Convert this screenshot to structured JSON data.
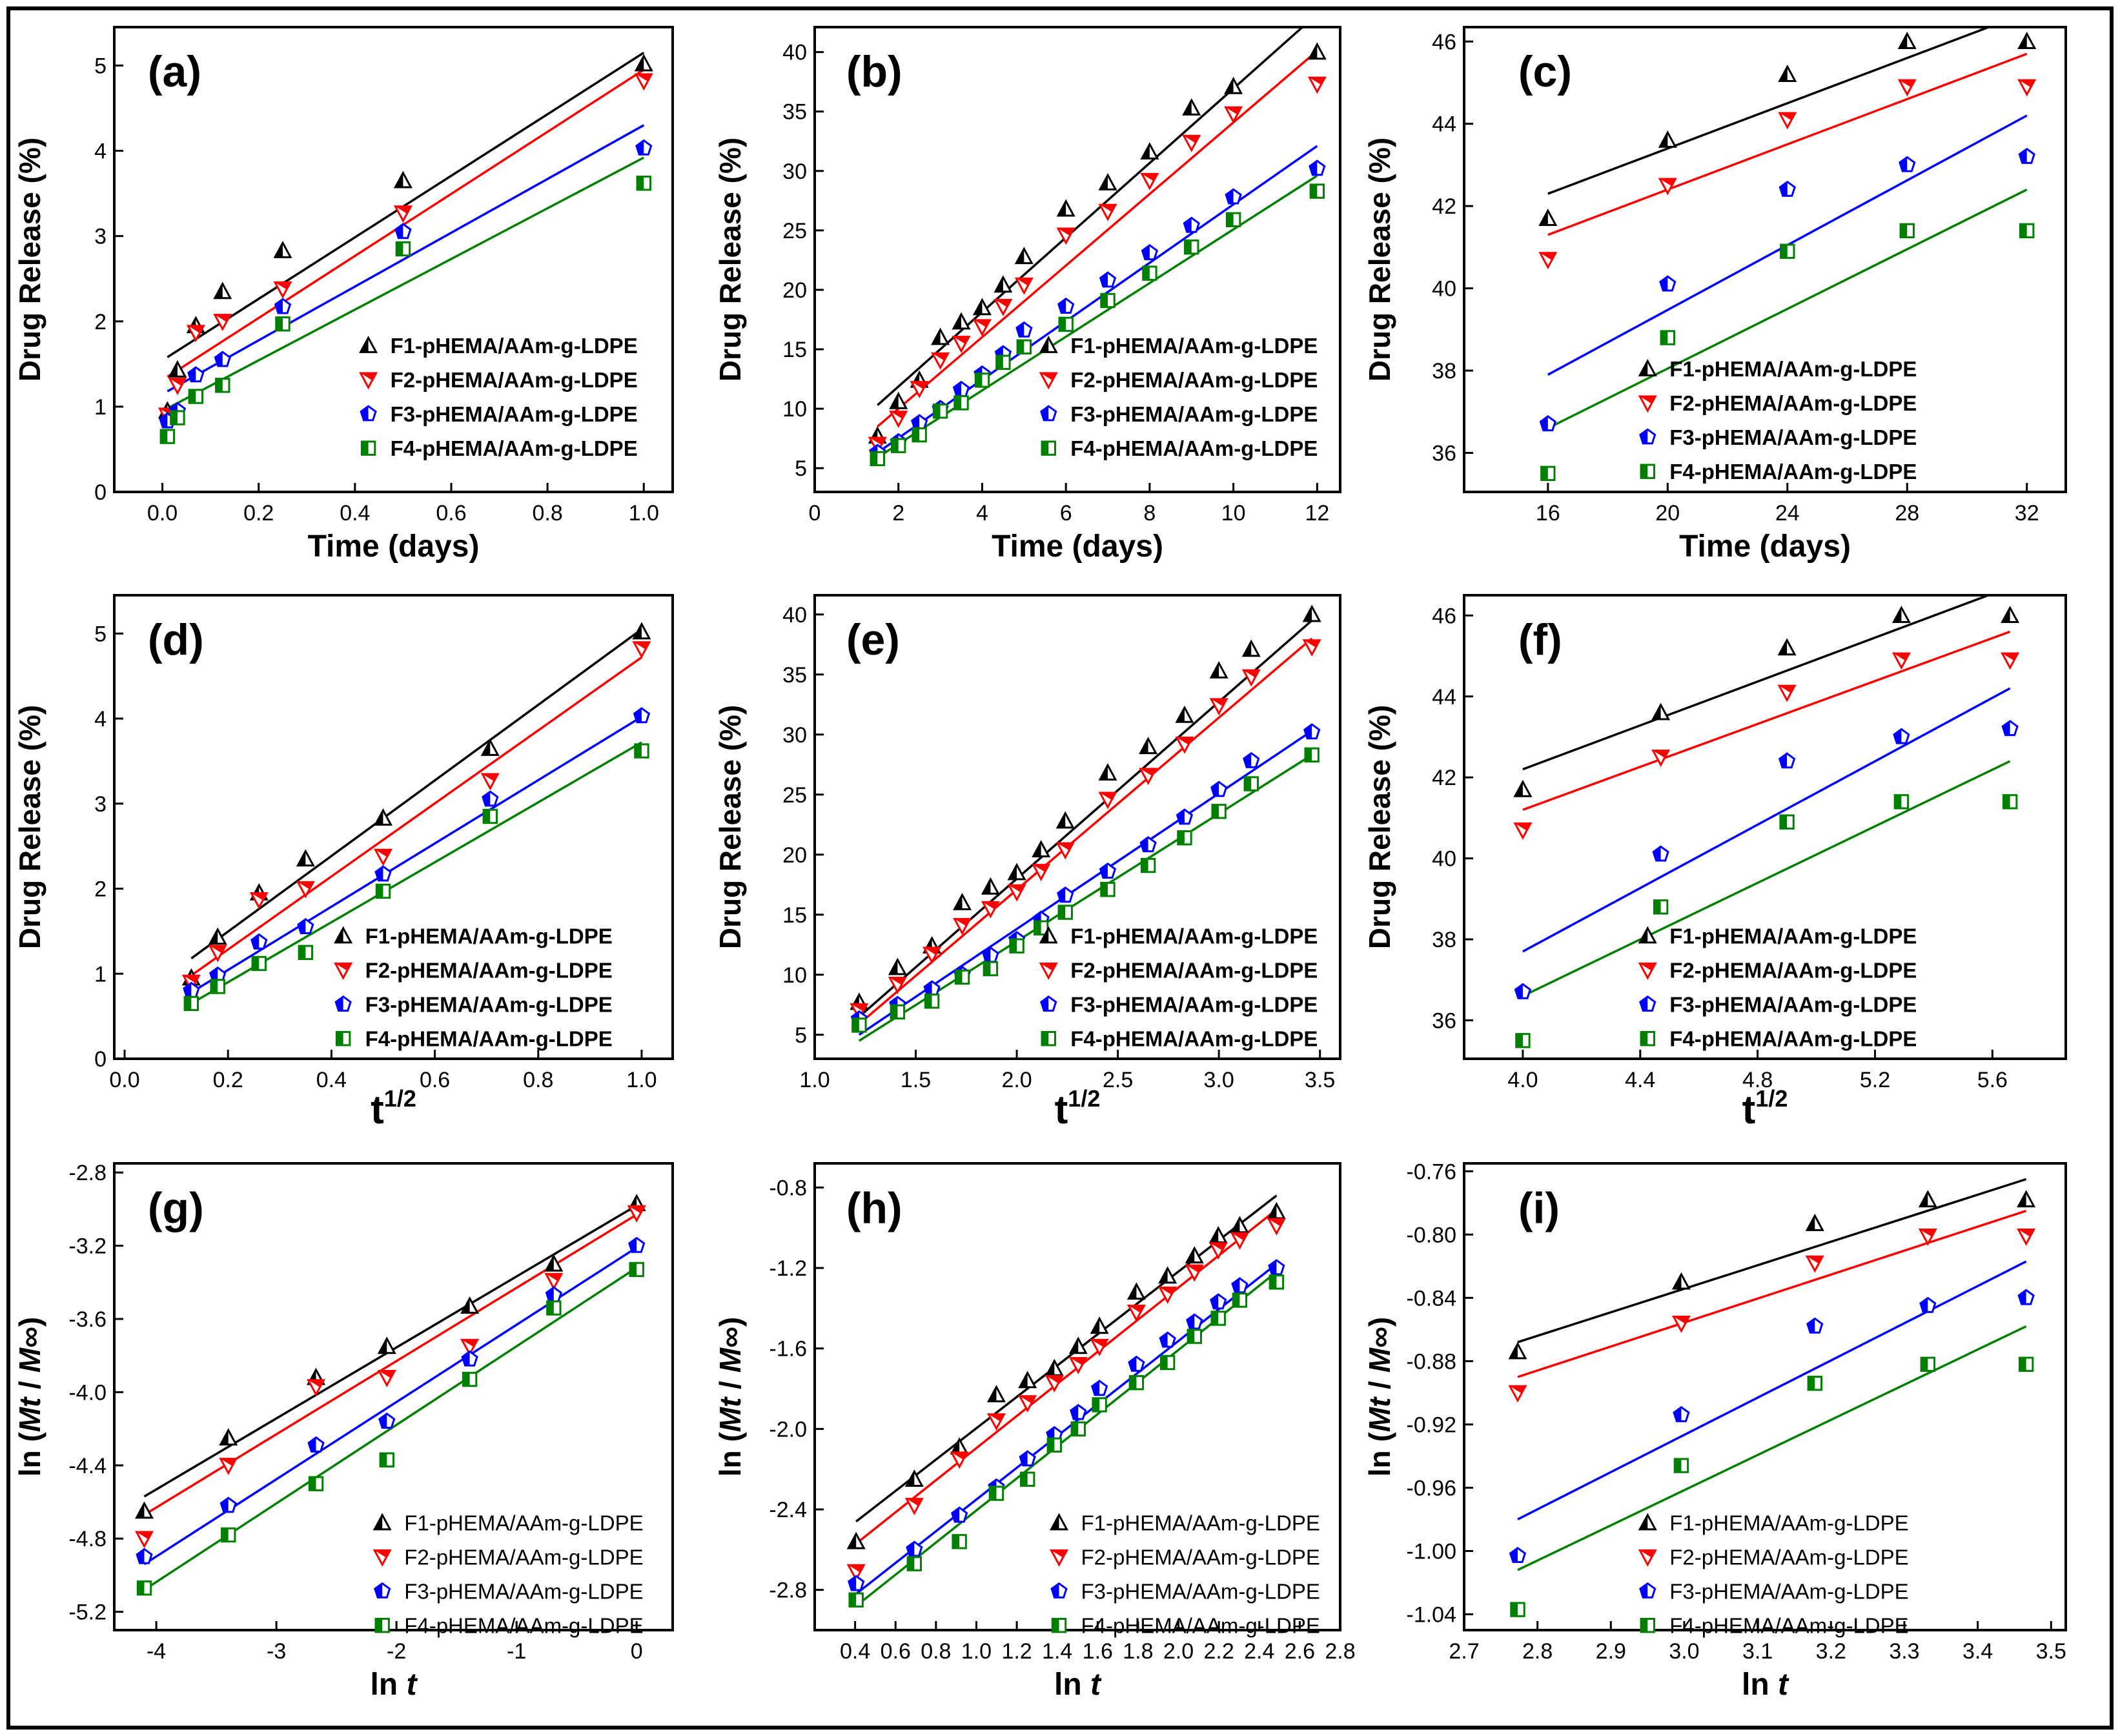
{
  "series_colors": {
    "F1": "#000000",
    "F2": "#ff0000",
    "F3": "#0000ff",
    "F4": "#008000"
  },
  "chart_data": [
    {
      "panel": "(a)",
      "type": "scatter",
      "xlabel": "Time (days)",
      "ylabel": "Drug Release (%)",
      "xlim": [
        -0.1,
        1.06
      ],
      "ylim": [
        0,
        5.45
      ],
      "xticks": [
        0.0,
        0.2,
        0.4,
        0.6,
        0.8,
        1.0
      ],
      "xticklabels": [
        "0.0",
        "0.2",
        "0.4",
        "0.6",
        "0.8",
        "1.0"
      ],
      "yticks": [
        0,
        1,
        2,
        3,
        4,
        5
      ],
      "yticklabels": [
        "0",
        "1",
        "2",
        "3",
        "4",
        "5"
      ],
      "x": [
        0.0104,
        0.0313,
        0.0694,
        0.125,
        0.25,
        0.5,
        1.0
      ],
      "series": [
        {
          "name": "F1-pHEMA/AAm-g-LDPE",
          "values": [
            0.95,
            1.43,
            1.95,
            2.35,
            2.83,
            3.65,
            5.02
          ],
          "fit": [
            1.58,
            5.15
          ]
        },
        {
          "name": "F2-pHEMA/AAm-g-LDPE",
          "values": [
            0.9,
            1.25,
            1.87,
            2.0,
            2.38,
            3.27,
            4.82
          ],
          "fit": [
            1.35,
            4.95
          ]
        },
        {
          "name": "F3-pHEMA/AAm-g-LDPE",
          "values": [
            0.83,
            0.95,
            1.37,
            1.55,
            2.17,
            3.05,
            4.03
          ],
          "fit": [
            1.18,
            4.3
          ]
        },
        {
          "name": "F4-pHEMA/AAm-g-LDPE",
          "values": [
            0.65,
            0.87,
            1.12,
            1.25,
            1.97,
            2.85,
            3.62
          ],
          "fit": [
            0.98,
            3.92
          ]
        }
      ]
    },
    {
      "panel": "(b)",
      "type": "scatter",
      "xlabel": "Time (days)",
      "ylabel": "Drug Release (%)",
      "xlim": [
        0,
        12.55
      ],
      "ylim": [
        3,
        42.1
      ],
      "xticks": [
        0,
        2,
        4,
        6,
        8,
        10,
        12
      ],
      "xticklabels": [
        "0",
        "2",
        "4",
        "6",
        "8",
        "10",
        "12"
      ],
      "yticks": [
        5,
        10,
        15,
        20,
        25,
        30,
        35,
        40
      ],
      "yticklabels": [
        "5",
        "10",
        "15",
        "20",
        "25",
        "30",
        "35",
        "40"
      ],
      "x": [
        1.5,
        2.0,
        2.5,
        3.0,
        3.5,
        4.0,
        4.5,
        5.0,
        6.0,
        7.0,
        8.0,
        9.0,
        10.0,
        12.0
      ],
      "series": [
        {
          "name": "F1-pHEMA/AAm-g-LDPE",
          "values": [
            7.7,
            10.6,
            12.4,
            16.0,
            17.3,
            18.5,
            20.4,
            22.8,
            26.8,
            29.0,
            31.6,
            35.3,
            37.1,
            40.0
          ],
          "fit": [
            10.3,
            43.2
          ]
        },
        {
          "name": "F2-pHEMA/AAm-g-LDPE",
          "values": [
            7.0,
            9.2,
            11.7,
            14.1,
            15.5,
            16.9,
            18.6,
            20.4,
            24.6,
            26.6,
            29.2,
            32.4,
            34.8,
            37.3
          ],
          "fit": [
            8.5,
            40.1
          ]
        },
        {
          "name": "F3-pHEMA/AAm-g-LDPE",
          "values": [
            6.3,
            7.2,
            8.8,
            10.0,
            11.6,
            12.9,
            14.6,
            16.6,
            18.6,
            20.8,
            23.1,
            25.4,
            27.8,
            30.2
          ],
          "fit": [
            6.3,
            32.1
          ]
        },
        {
          "name": "F4-pHEMA/AAm-g-LDPE",
          "values": [
            5.8,
            6.9,
            7.8,
            9.8,
            10.5,
            12.4,
            13.9,
            15.2,
            17.1,
            19.1,
            21.4,
            23.6,
            25.9,
            28.3
          ],
          "fit": [
            5.9,
            29.6
          ]
        }
      ]
    },
    {
      "panel": "(c)",
      "type": "scatter",
      "xlabel": "Time (days)",
      "ylabel": "Drug Release (%)",
      "xlim": [
        13.2,
        33.3
      ],
      "ylim": [
        35.05,
        46.35
      ],
      "xticks": [
        16,
        20,
        24,
        28,
        32
      ],
      "xticklabels": [
        "16",
        "20",
        "24",
        "28",
        "32"
      ],
      "yticks": [
        36,
        38,
        40,
        42,
        44,
        46
      ],
      "yticklabels": [
        "36",
        "38",
        "40",
        "42",
        "44",
        "46"
      ],
      "x": [
        16,
        20,
        24,
        28,
        32
      ],
      "series": [
        {
          "name": "F1-pHEMA/AAm-g-LDPE",
          "values": [
            41.7,
            43.6,
            45.2,
            46.0,
            46.0
          ],
          "fit": [
            42.3,
            46.7
          ]
        },
        {
          "name": "F2-pHEMA/AAm-g-LDPE",
          "values": [
            40.7,
            42.5,
            44.1,
            44.9,
            44.9
          ],
          "fit": [
            41.3,
            45.7
          ]
        },
        {
          "name": "F3-pHEMA/AAm-g-LDPE",
          "values": [
            36.7,
            40.1,
            42.4,
            43.0,
            43.2
          ],
          "fit": [
            37.9,
            44.2
          ]
        },
        {
          "name": "F4-pHEMA/AAm-g-LDPE",
          "values": [
            35.5,
            38.8,
            40.9,
            41.4,
            41.4
          ],
          "fit": [
            36.6,
            42.4
          ]
        }
      ]
    },
    {
      "panel": "(d)",
      "type": "scatter",
      "xlabel": "t",
      "xlabel_sup": "1/2",
      "ylabel": "Drug Release (%)",
      "xlim": [
        -0.02,
        1.06
      ],
      "ylim": [
        0,
        5.45
      ],
      "xticks": [
        0.0,
        0.2,
        0.4,
        0.6,
        0.8,
        1.0
      ],
      "xticklabels": [
        "0.0",
        "0.2",
        "0.4",
        "0.6",
        "0.8",
        "1.0"
      ],
      "yticks": [
        0,
        1,
        2,
        3,
        4,
        5
      ],
      "yticklabels": [
        "0",
        "1",
        "2",
        "3",
        "4",
        "5"
      ],
      "x": [
        0.129,
        0.18,
        0.26,
        0.35,
        0.5,
        0.707,
        1.0
      ],
      "series": [
        {
          "name": "F1-pHEMA/AAm-g-LDPE",
          "values": [
            0.95,
            1.43,
            1.95,
            2.35,
            2.83,
            3.65,
            5.02
          ],
          "fit": [
            1.18,
            5.05
          ]
        },
        {
          "name": "F2-pHEMA/AAm-g-LDPE",
          "values": [
            0.9,
            1.25,
            1.87,
            2.0,
            2.38,
            3.27,
            4.82
          ],
          "fit": [
            0.98,
            4.72
          ]
        },
        {
          "name": "F3-pHEMA/AAm-g-LDPE",
          "values": [
            0.8,
            0.98,
            1.37,
            1.55,
            2.17,
            3.05,
            4.03
          ],
          "fit": [
            0.78,
            4.02
          ]
        },
        {
          "name": "F4-pHEMA/AAm-g-LDPE",
          "values": [
            0.65,
            0.85,
            1.12,
            1.25,
            1.97,
            2.85,
            3.62
          ],
          "fit": [
            0.65,
            3.72
          ]
        }
      ]
    },
    {
      "panel": "(e)",
      "type": "scatter",
      "xlabel": "t",
      "xlabel_sup": "1/2",
      "ylabel": "Drug Release (%)",
      "xlim": [
        1.0,
        3.6
      ],
      "ylim": [
        3,
        41.6
      ],
      "xticks": [
        1.0,
        1.5,
        2.0,
        2.5,
        3.0,
        3.5
      ],
      "xticklabels": [
        "1.0",
        "1.5",
        "2.0",
        "2.5",
        "3.0",
        "3.5"
      ],
      "yticks": [
        5,
        10,
        15,
        20,
        25,
        30,
        35,
        40
      ],
      "yticklabels": [
        "5",
        "10",
        "15",
        "20",
        "25",
        "30",
        "35",
        "40"
      ],
      "x": [
        1.22,
        1.41,
        1.58,
        1.73,
        1.87,
        2.0,
        2.12,
        2.24,
        2.45,
        2.65,
        2.83,
        3.0,
        3.16,
        3.46
      ],
      "series": [
        {
          "name": "F1-pHEMA/AAm-g-LDPE",
          "values": [
            7.7,
            10.6,
            12.4,
            16.0,
            17.3,
            18.5,
            20.4,
            22.8,
            26.8,
            29.0,
            31.6,
            35.3,
            37.1,
            40.0
          ],
          "fit": [
            6.5,
            39.5
          ]
        },
        {
          "name": "F2-pHEMA/AAm-g-LDPE",
          "values": [
            7.0,
            9.2,
            11.7,
            14.1,
            15.5,
            16.9,
            18.6,
            20.4,
            24.6,
            26.6,
            29.2,
            32.4,
            34.8,
            37.3
          ],
          "fit": [
            5.9,
            38.0
          ]
        },
        {
          "name": "F3-pHEMA/AAm-g-LDPE",
          "values": [
            6.3,
            7.5,
            8.8,
            10.0,
            11.6,
            12.9,
            14.6,
            16.6,
            18.6,
            20.8,
            23.1,
            25.4,
            27.8,
            30.2
          ],
          "fit": [
            5.0,
            30.3
          ]
        },
        {
          "name": "F4-pHEMA/AAm-g-LDPE",
          "values": [
            5.8,
            6.9,
            7.8,
            9.8,
            10.5,
            12.4,
            13.9,
            15.2,
            17.1,
            19.1,
            21.4,
            23.6,
            25.9,
            28.3
          ],
          "fit": [
            4.5,
            28.3
          ]
        }
      ]
    },
    {
      "panel": "(f)",
      "type": "scatter",
      "xlabel": "t",
      "xlabel_sup": "1/2",
      "ylabel": "Drug Release (%)",
      "xlim": [
        3.8,
        5.85
      ],
      "ylim": [
        35.05,
        46.5
      ],
      "xticks": [
        4.0,
        4.4,
        4.8,
        5.2,
        5.6
      ],
      "xticklabels": [
        "4.0",
        "4.4",
        "4.8",
        "5.2",
        "5.6"
      ],
      "yticks": [
        36,
        38,
        40,
        42,
        44,
        46
      ],
      "yticklabels": [
        "36",
        "38",
        "40",
        "42",
        "44",
        "46"
      ],
      "x": [
        4.0,
        4.47,
        4.9,
        5.29,
        5.66
      ],
      "series": [
        {
          "name": "F1-pHEMA/AAm-g-LDPE",
          "values": [
            41.7,
            43.6,
            45.2,
            46.0,
            46.0
          ],
          "fit": [
            42.2,
            46.7
          ]
        },
        {
          "name": "F2-pHEMA/AAm-g-LDPE",
          "values": [
            40.7,
            42.5,
            44.1,
            44.9,
            44.9
          ],
          "fit": [
            41.2,
            45.6
          ]
        },
        {
          "name": "F3-pHEMA/AAm-g-LDPE",
          "values": [
            36.7,
            40.1,
            42.4,
            43.0,
            43.2
          ],
          "fit": [
            37.7,
            44.2
          ]
        },
        {
          "name": "F4-pHEMA/AAm-g-LDPE",
          "values": [
            35.5,
            38.8,
            40.9,
            41.4,
            41.4
          ],
          "fit": [
            36.6,
            42.4
          ]
        }
      ]
    },
    {
      "panel": "(g)",
      "type": "scatter",
      "xlabel": "ln t",
      "ylabel": "ln (Mt / M∞)",
      "xlim": [
        -4.35,
        0.3
      ],
      "ylim": [
        -5.3,
        -2.75
      ],
      "xticks": [
        -4,
        -3,
        -2,
        -1,
        0
      ],
      "xticklabels": [
        "-4",
        "-3",
        "-2",
        "-1",
        "0"
      ],
      "yticks": [
        -2.8,
        -3.2,
        -3.6,
        -4.0,
        -4.4,
        -4.8,
        -5.2
      ],
      "yticklabels": [
        "-2.8",
        "-3.2",
        "-3.6",
        "-4.0",
        "-4.4",
        "-4.8",
        "-5.2"
      ],
      "x": [
        -4.1,
        -3.4,
        -2.67,
        -2.08,
        -1.39,
        -0.69,
        0.0
      ],
      "series": [
        {
          "name": "F1-pHEMA/AAm-g-LDPE",
          "values": [
            -4.65,
            -4.25,
            -3.92,
            -3.75,
            -3.53,
            -3.3,
            -2.97
          ],
          "fit": [
            -4.57,
            -2.98
          ]
        },
        {
          "name": "F2-pHEMA/AAm-g-LDPE",
          "values": [
            -4.8,
            -4.4,
            -3.97,
            -3.92,
            -3.75,
            -3.39,
            -3.02
          ],
          "fit": [
            -4.67,
            -3.03
          ]
        },
        {
          "name": "F3-pHEMA/AAm-g-LDPE",
          "values": [
            -4.9,
            -4.62,
            -4.29,
            -4.16,
            -3.82,
            -3.47,
            -3.2
          ],
          "fit": [
            -4.94,
            -3.21
          ]
        },
        {
          "name": "F4-pHEMA/AAm-g-LDPE",
          "values": [
            -5.07,
            -4.78,
            -4.5,
            -4.37,
            -3.93,
            -3.54,
            -3.33
          ],
          "fit": [
            -5.08,
            -3.32
          ]
        }
      ]
    },
    {
      "panel": "(h)",
      "type": "scatter",
      "xlabel": "ln t",
      "ylabel": "ln (Mt / M∞)",
      "xlim": [
        0.2,
        2.8
      ],
      "ylim": [
        -3.0,
        -0.68
      ],
      "xticks": [
        0.4,
        0.6,
        0.8,
        1.0,
        1.2,
        1.4,
        1.6,
        1.8,
        2.0,
        2.2,
        2.4,
        2.6,
        2.8
      ],
      "xticklabels": [
        "0.4",
        "0.6",
        "0.8",
        "1.0",
        "1.2",
        "1.4",
        "1.6",
        "1.8",
        "2.0",
        "2.2",
        "2.4",
        "2.6",
        "2.8"
      ],
      "yticks": [
        -0.8,
        -1.2,
        -1.6,
        -2.0,
        -2.4,
        -2.8
      ],
      "yticklabels": [
        "-0.8",
        "-1.2",
        "-1.6",
        "-2.0",
        "-2.4",
        "-2.8"
      ],
      "x": [
        0.405,
        0.693,
        0.916,
        1.099,
        1.253,
        1.386,
        1.504,
        1.609,
        1.792,
        1.946,
        2.079,
        2.197,
        2.303,
        2.485
      ],
      "series": [
        {
          "name": "F1-pHEMA/AAm-g-LDPE",
          "values": [
            -2.56,
            -2.25,
            -2.09,
            -1.83,
            -1.76,
            -1.7,
            -1.59,
            -1.49,
            -1.32,
            -1.24,
            -1.14,
            -1.04,
            -0.99,
            -0.92
          ],
          "fit": [
            -2.46,
            -0.84
          ]
        },
        {
          "name": "F2-pHEMA/AAm-g-LDPE",
          "values": [
            -2.71,
            -2.38,
            -2.15,
            -1.96,
            -1.87,
            -1.77,
            -1.68,
            -1.59,
            -1.42,
            -1.33,
            -1.22,
            -1.11,
            -1.06,
            -0.99
          ],
          "fit": [
            -2.57,
            -0.91
          ]
        },
        {
          "name": "F3-pHEMA/AAm-g-LDPE",
          "values": [
            -2.77,
            -2.6,
            -2.43,
            -2.29,
            -2.15,
            -2.03,
            -1.92,
            -1.8,
            -1.68,
            -1.56,
            -1.47,
            -1.37,
            -1.29,
            -1.2
          ],
          "fit": [
            -2.82,
            -1.18
          ]
        },
        {
          "name": "F4-pHEMA/AAm-g-LDPE",
          "values": [
            -2.85,
            -2.67,
            -2.56,
            -2.32,
            -2.25,
            -2.08,
            -2.0,
            -1.88,
            -1.77,
            -1.67,
            -1.54,
            -1.45,
            -1.36,
            -1.27
          ],
          "fit": [
            -2.88,
            -1.22
          ]
        }
      ]
    },
    {
      "panel": "(i)",
      "type": "scatter",
      "xlabel": "ln t",
      "ylabel": "ln (Mt / M∞)",
      "xlim": [
        2.7,
        3.52
      ],
      "ylim": [
        -1.05,
        -0.755
      ],
      "xticks": [
        2.7,
        2.8,
        2.9,
        3.0,
        3.1,
        3.2,
        3.3,
        3.4,
        3.5
      ],
      "xticklabels": [
        "2.7",
        "2.8",
        "2.9",
        "3.0",
        "3.1",
        "3.2",
        "3.3",
        "3.4",
        "3.5"
      ],
      "yticks": [
        -0.76,
        -0.8,
        -0.84,
        -0.88,
        -0.92,
        -0.96,
        -1.0,
        -1.04
      ],
      "yticklabels": [
        "-0.76",
        "-0.80",
        "-0.84",
        "-0.88",
        "-0.92",
        "-0.96",
        "-1.00",
        "-1.04"
      ],
      "x": [
        2.773,
        2.996,
        3.178,
        3.332,
        3.466
      ],
      "series": [
        {
          "name": "F1-pHEMA/AAm-g-LDPE",
          "values": [
            -0.874,
            -0.83,
            -0.793,
            -0.778,
            -0.778
          ],
          "fit": [
            -0.868,
            -0.765
          ]
        },
        {
          "name": "F2-pHEMA/AAm-g-LDPE",
          "values": [
            -0.9,
            -0.856,
            -0.818,
            -0.801,
            -0.801
          ],
          "fit": [
            -0.89,
            -0.785
          ]
        },
        {
          "name": "F3-pHEMA/AAm-g-LDPE",
          "values": [
            -1.003,
            -0.914,
            -0.858,
            -0.845,
            -0.84
          ],
          "fit": [
            -0.98,
            -0.817
          ]
        },
        {
          "name": "F4-pHEMA/AAm-g-LDPE",
          "values": [
            -1.037,
            -0.946,
            -0.894,
            -0.882,
            -0.882
          ],
          "fit": [
            -1.012,
            -0.858
          ]
        }
      ]
    }
  ]
}
